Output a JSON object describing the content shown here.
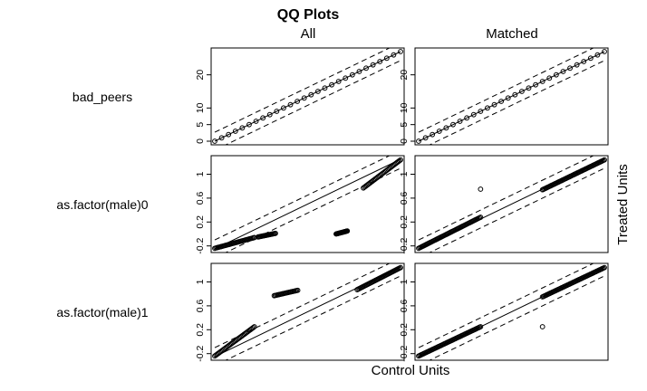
{
  "chart_data": {
    "type": "scatter",
    "title": "QQ Plots",
    "columns": [
      "All",
      "Matched"
    ],
    "xlabel": "Control Units",
    "ylabel": "Treated Units",
    "reference_line": "y = x",
    "band": "dashed lines at y = x ± 0.1 × range",
    "rows": [
      {
        "name": "bad_peers",
        "range": [
          0,
          27
        ],
        "ticks": [
          0,
          5,
          10,
          20
        ],
        "panels": {
          "All": [
            [
              0,
              0
            ],
            [
              1,
              1
            ],
            [
              2,
              2
            ],
            [
              3,
              3
            ],
            [
              4,
              4
            ],
            [
              5,
              5
            ],
            [
              6,
              6
            ],
            [
              7,
              7
            ],
            [
              8,
              8
            ],
            [
              9,
              9
            ],
            [
              10,
              10
            ],
            [
              11,
              11
            ],
            [
              12,
              12
            ],
            [
              13,
              13
            ],
            [
              14,
              14
            ],
            [
              15,
              15
            ],
            [
              16,
              16
            ],
            [
              17,
              17
            ],
            [
              18,
              18
            ],
            [
              19,
              19
            ],
            [
              20,
              20
            ],
            [
              21,
              21
            ],
            [
              22,
              22
            ],
            [
              23,
              23
            ],
            [
              24,
              24
            ],
            [
              25,
              25
            ],
            [
              26,
              26
            ],
            [
              27,
              27
            ]
          ],
          "Matched": [
            [
              0,
              0
            ],
            [
              1,
              1
            ],
            [
              2,
              2
            ],
            [
              3,
              3
            ],
            [
              4,
              4
            ],
            [
              5,
              5
            ],
            [
              6,
              6
            ],
            [
              7,
              7
            ],
            [
              8,
              8
            ],
            [
              9,
              9
            ],
            [
              10,
              10
            ],
            [
              11,
              11
            ],
            [
              12,
              12
            ],
            [
              13,
              13
            ],
            [
              14,
              14
            ],
            [
              15,
              15
            ],
            [
              16,
              16
            ],
            [
              17,
              17
            ],
            [
              18,
              18
            ],
            [
              19,
              19
            ],
            [
              20,
              20
            ],
            [
              21,
              21
            ],
            [
              22,
              22
            ],
            [
              23,
              23
            ],
            [
              24,
              24
            ],
            [
              25,
              25
            ],
            [
              26,
              26
            ],
            [
              27,
              27
            ]
          ]
        }
      },
      {
        "name": "as.factor(male)0",
        "range": [
          -0.25,
          1.25
        ],
        "ticks": [
          -0.2,
          0.2,
          0.6,
          1.0
        ],
        "panels": {
          "All": [
            {
              "x0": -0.25,
              "x1": 0.07,
              "y0": -0.24,
              "y1": -0.06
            },
            {
              "x0": 0.1,
              "x1": 0.24,
              "y0": -0.05,
              "y1": 0.01
            },
            {
              "x0": 0.73,
              "x1": 0.82,
              "y0": 0.0,
              "y1": 0.05
            },
            {
              "x0": 0.95,
              "x1": 1.25,
              "y0": 0.77,
              "y1": 1.24
            }
          ],
          "Matched": [
            {
              "x0": -0.25,
              "x1": 0.25,
              "y0": -0.24,
              "y1": 0.28
            },
            {
              "x0": 0.75,
              "x1": 1.25,
              "y0": 0.74,
              "y1": 1.24
            },
            {
              "x": 0.25,
              "y": 0.75
            }
          ]
        }
      },
      {
        "name": "as.factor(male)1",
        "range": [
          -0.25,
          1.25
        ],
        "ticks": [
          -0.2,
          0.2,
          0.6,
          1.0
        ],
        "panels": {
          "All": [
            {
              "x0": -0.25,
              "x1": 0.07,
              "y0": -0.24,
              "y1": 0.25
            },
            {
              "x0": 0.23,
              "x1": 0.42,
              "y0": 0.77,
              "y1": 0.86
            },
            {
              "x0": 0.9,
              "x1": 1.25,
              "y0": 0.87,
              "y1": 1.24
            }
          ],
          "Matched": [
            {
              "x0": -0.25,
              "x1": 0.25,
              "y0": -0.24,
              "y1": 0.25
            },
            {
              "x0": 0.75,
              "x1": 1.25,
              "y0": 0.75,
              "y1": 1.24
            },
            {
              "x": 0.75,
              "y": 0.25
            }
          ]
        }
      }
    ],
    "grid": false,
    "legend": "none"
  }
}
